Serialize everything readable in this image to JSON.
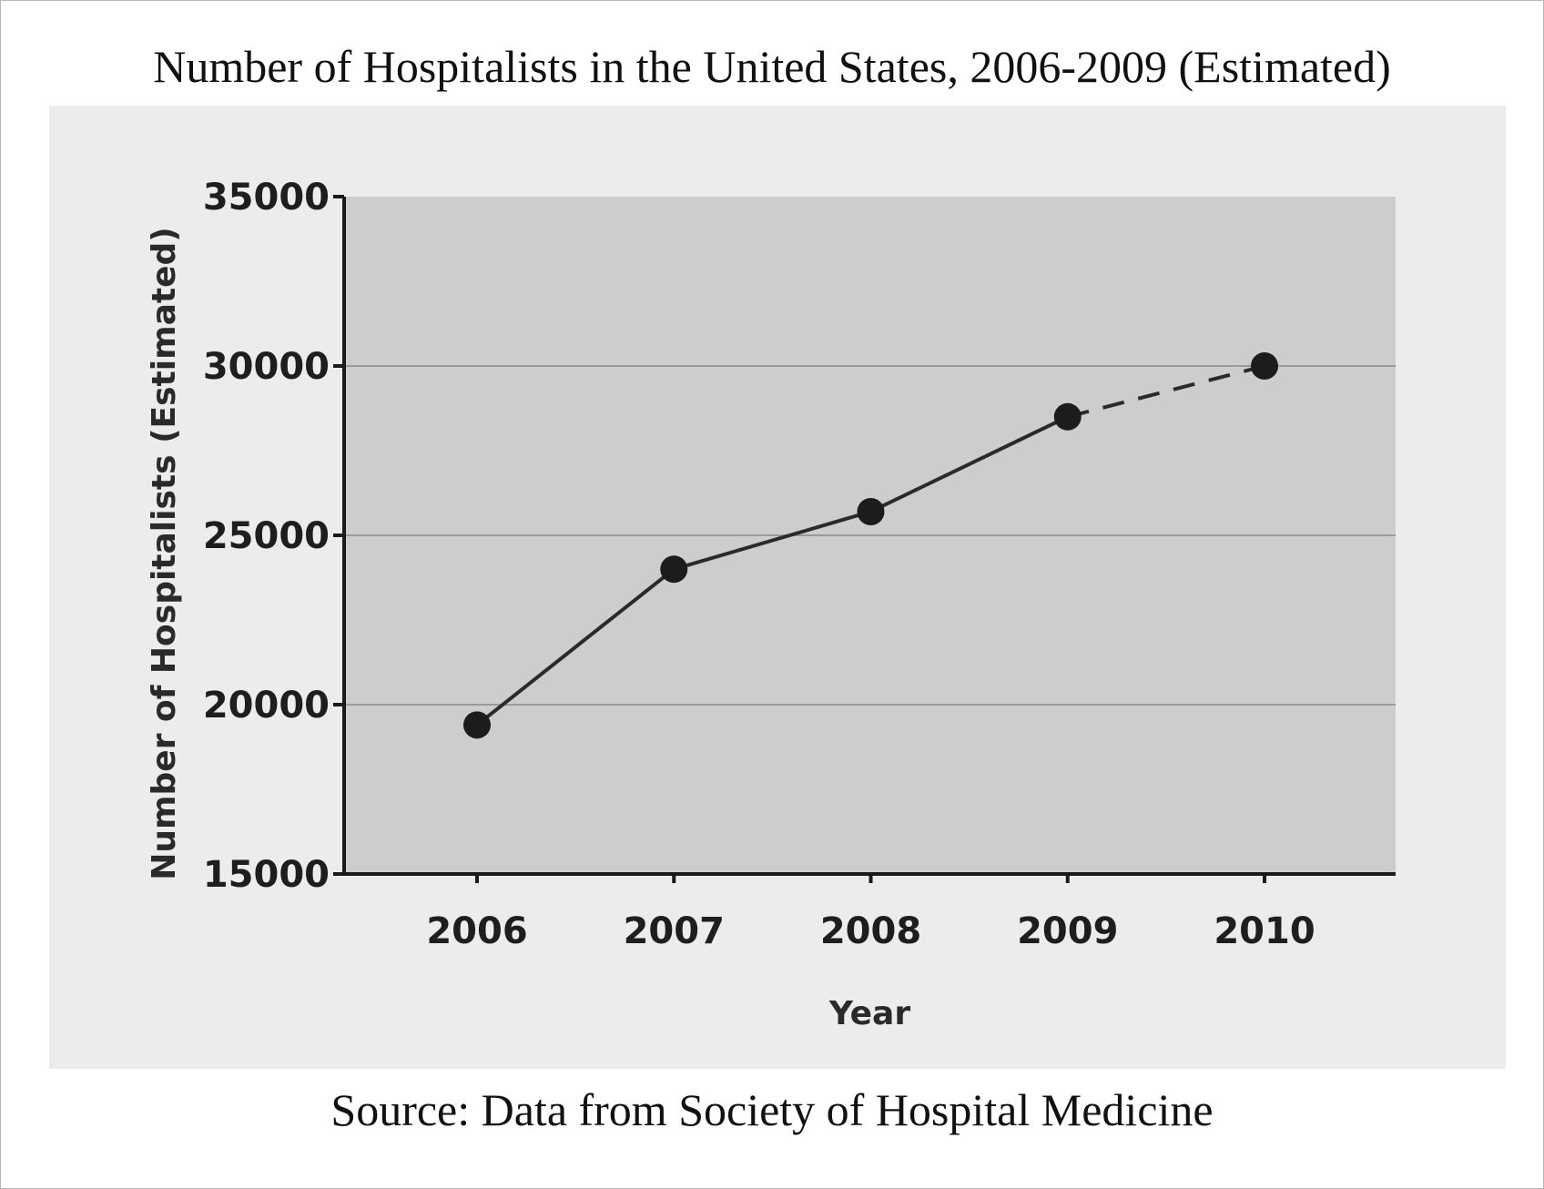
{
  "chart_data": {
    "type": "line",
    "title": "Number of Hospitalists in the United States, 2006-2009 (Estimated)",
    "xlabel": "Year",
    "ylabel": "Number of Hospitalists (Estimated)",
    "source": "Source: Data from Society of Hospital Medicine",
    "x": [
      2006,
      2007,
      2008,
      2009,
      2010
    ],
    "x_tick_labels": [
      "2006",
      "2007",
      "2008",
      "2009",
      "2010"
    ],
    "y_ticks": [
      15000,
      20000,
      25000,
      30000,
      35000
    ],
    "y_tick_labels": [
      "15000",
      "20000",
      "25000",
      "30000",
      "35000"
    ],
    "ylim": [
      15000,
      35000
    ],
    "grid": "horizontal",
    "series": [
      {
        "values": [
          19400,
          24000,
          25700,
          28500,
          30000
        ],
        "solid_through": 2009,
        "dashed_after": 2009
      }
    ],
    "colors": {
      "plot_background": "#cdcdcd",
      "panel_background": "#ececec",
      "line": "#2a2a2a",
      "gridline": "#9a9a9a",
      "axis": "#1a1a1a"
    }
  }
}
